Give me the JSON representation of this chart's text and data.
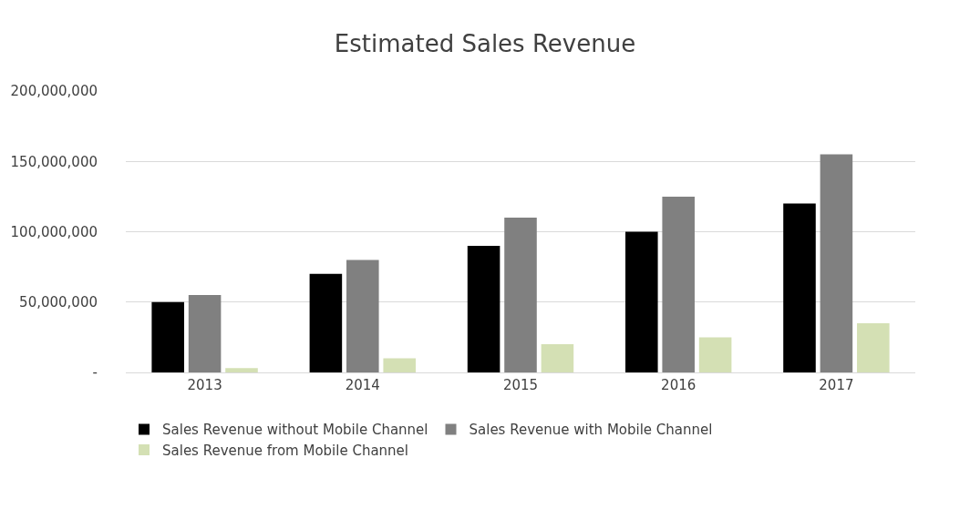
{
  "chart_data": {
    "type": "bar",
    "title": "Estimated Sales Revenue",
    "categories": [
      "2013",
      "2014",
      "2015",
      "2016",
      "2017"
    ],
    "series": [
      {
        "name": "Sales Revenue without Mobile Channel",
        "color": "#000000",
        "values": [
          50000000,
          70000000,
          90000000,
          100000000,
          120000000
        ]
      },
      {
        "name": "Sales Revenue with Mobile Channel",
        "color": "#808080",
        "values": [
          55000000,
          80000000,
          110000000,
          125000000,
          155000000
        ]
      },
      {
        "name": "Sales Revenue from Mobile Channel",
        "color": "#d4e0b4",
        "values": [
          3000000,
          10000000,
          20000000,
          25000000,
          35000000
        ]
      }
    ],
    "ylim": [
      0,
      200000000
    ],
    "yticks": [
      {
        "value": 0,
        "label": "-"
      },
      {
        "value": 50000000,
        "label": "50,000,000"
      },
      {
        "value": 100000000,
        "label": "100,000,000"
      },
      {
        "value": 150000000,
        "label": "150,000,000"
      },
      {
        "value": 200000000,
        "label": "200,000,000"
      }
    ],
    "grid": "y",
    "legend": "bottom"
  }
}
